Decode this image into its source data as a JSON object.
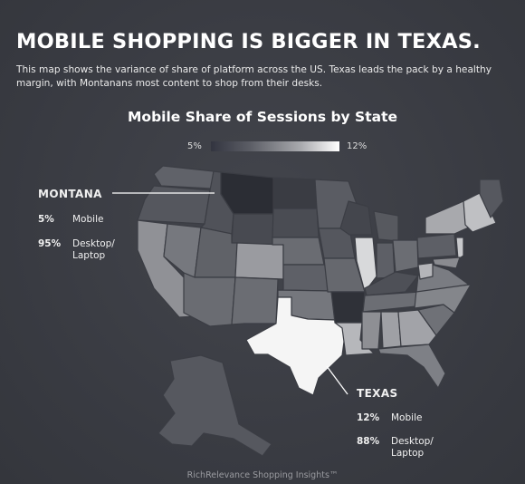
{
  "header": {
    "title": "MOBILE SHOPPING IS BIGGER IN TEXAS.",
    "intro": "This map shows the variance of share of platform across the US. Texas leads the pack by a healthy margin, with Montanans most content to shop from their desks."
  },
  "map": {
    "title": "Mobile Share of Sessions by State",
    "legend": {
      "min_label": "5%",
      "max_label": "12%",
      "min_value": 5,
      "max_value": 12
    }
  },
  "callouts": {
    "montana": {
      "state": "MONTANA",
      "mobile_pct": "5%",
      "mobile_label": "Mobile",
      "desktop_pct": "95%",
      "desktop_label_1": "Desktop/",
      "desktop_label_2": "Laptop"
    },
    "texas": {
      "state": "TEXAS",
      "mobile_pct": "12%",
      "mobile_label": "Mobile",
      "desktop_pct": "88%",
      "desktop_label_1": "Desktop/",
      "desktop_label_2": "Laptop"
    }
  },
  "colors": {
    "background": "#3b3d44",
    "lowest": "#2b2d34",
    "highest": "#ffffff"
  },
  "footer": "RichRelevance Shopping Insights™"
}
